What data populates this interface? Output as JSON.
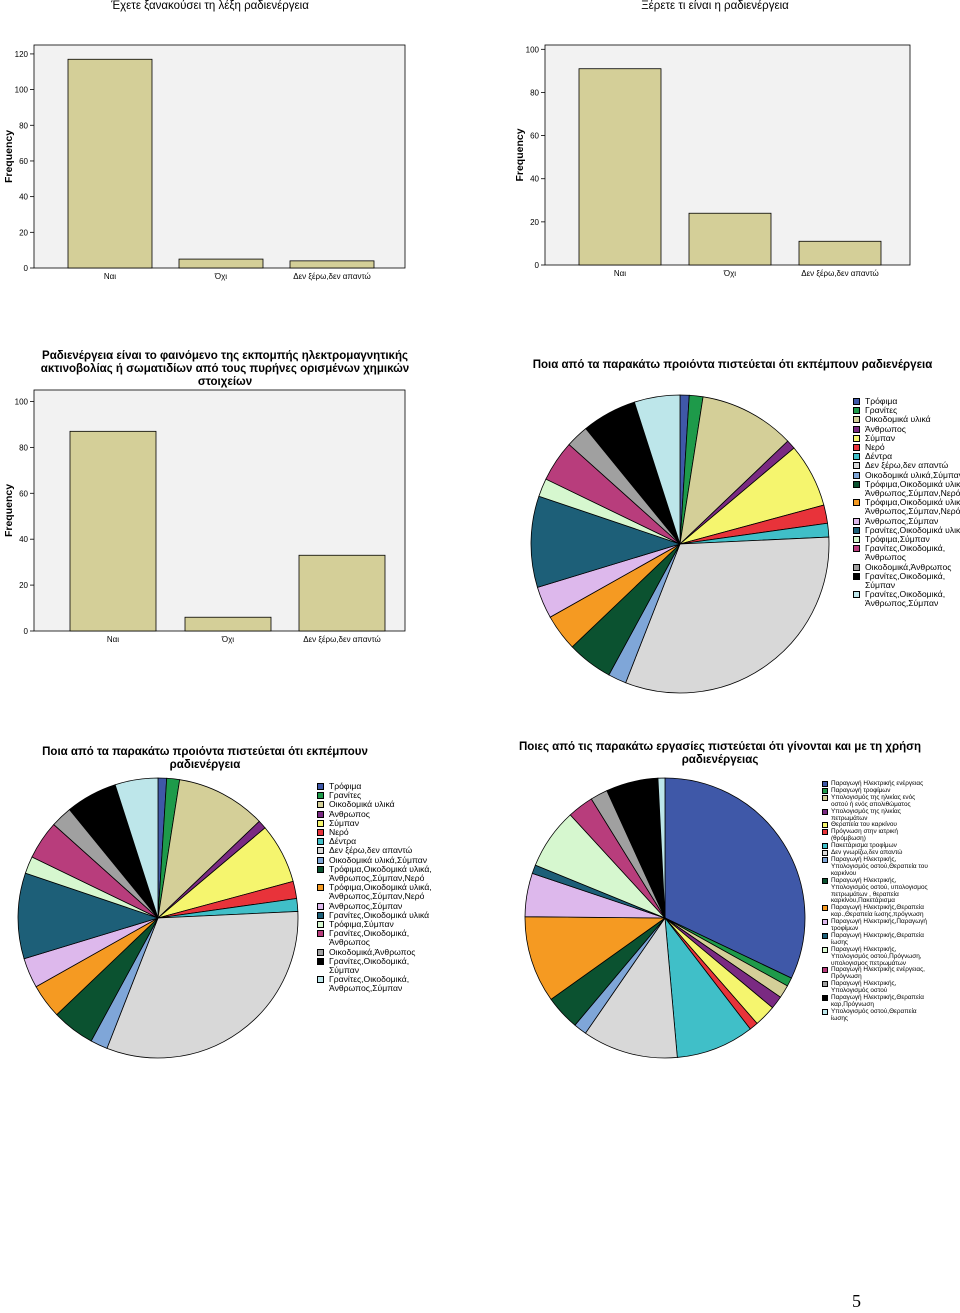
{
  "page_number": "5",
  "chart_data": [
    {
      "id": "bar1",
      "type": "bar",
      "title": "Έχετε ξανακούσει τη λέξη ραδιενέργεια",
      "ylabel": "Frequency",
      "xlabel": "",
      "categories": [
        "Ναι",
        "Όχι",
        "Δεν ξέρω,δεν απαντώ"
      ],
      "values": [
        117,
        5,
        4
      ],
      "ylim": [
        0,
        125
      ],
      "yticks": [
        0,
        20,
        40,
        60,
        80,
        100,
        120
      ],
      "bar_color": "#d4cf98",
      "grid": false
    },
    {
      "id": "bar2",
      "type": "bar",
      "title": "Ξέρετε τι είναι η ραδιενέργεια",
      "ylabel": "Frequency",
      "xlabel": "",
      "categories": [
        "Ναι",
        "Όχι",
        "Δεν ξέρω,δεν απαντώ"
      ],
      "values": [
        91,
        24,
        11
      ],
      "ylim": [
        0,
        102
      ],
      "yticks": [
        0,
        20,
        40,
        60,
        80,
        100
      ],
      "bar_color": "#d4cf98",
      "grid": false
    },
    {
      "id": "bar3",
      "type": "bar",
      "title": "Ραδιενέργεια είναι το φαινόμενο της εκπομπής ηλεκτρομαγνητικής ακτινοβολίας ή σωματιδίων από τους πυρήνες ορισμένων χημικών στοιχείων",
      "ylabel": "Frequency",
      "xlabel": "",
      "categories": [
        "Ναι",
        "Όχι",
        "Δεν ξέρω,δεν απαντώ"
      ],
      "values": [
        87,
        6,
        33
      ],
      "ylim": [
        0,
        105
      ],
      "yticks": [
        0,
        20,
        40,
        60,
        80,
        100
      ],
      "bar_color": "#d4cf98",
      "grid": false
    },
    {
      "id": "pie1",
      "type": "pie",
      "title": "Ποια από τα παρακάτω προιόντα πιστεύεται ότι εκπέμπουν ραδιενέργεια",
      "legend_position": "right",
      "slices": [
        {
          "label": "Τρόφιμα",
          "value": 1,
          "color": "#3f58a8"
        },
        {
          "label": "Γρανίτες",
          "value": 1.5,
          "color": "#1e9a4a"
        },
        {
          "label": "Οικοδομικά υλικά",
          "value": 10.5,
          "color": "#d4cf98"
        },
        {
          "label": "Άνθρωπος",
          "value": 1,
          "color": "#7a2a82"
        },
        {
          "label": "Σύμπαν",
          "value": 7,
          "color": "#f5f56e"
        },
        {
          "label": "Νερό",
          "value": 2,
          "color": "#e8333a"
        },
        {
          "label": "Δέντρα",
          "value": 1.5,
          "color": "#40bfc8"
        },
        {
          "label": "Δεν ξέρω,δεν απαντώ",
          "value": 32,
          "color": "#d8d8d8"
        },
        {
          "label": "Οικοδομικά υλικά,Σύμπαν",
          "value": 2,
          "color": "#7fa6d8"
        },
        {
          "label": "Τρόφιμα,Οικοδομικά υλικά, Άνθρωπος,Σύμπαν,Νερό",
          "value": 5,
          "color": "#0b5230"
        },
        {
          "label": "Τρόφιμα,Οικοδομικά υλικά, Άνθρωπος,Σύμπαν,Νερό",
          "value": 4,
          "color": "#f59a22"
        },
        {
          "label": "Άνθρωπος,Σύμπαν",
          "value": 3.5,
          "color": "#ddb8ec"
        },
        {
          "label": "Γρανίτες,Οικοδομικά υλικά",
          "value": 10,
          "color": "#1d5f78"
        },
        {
          "label": "Τρόφιμα,Σύμπαν",
          "value": 2,
          "color": "#d6f7cf"
        },
        {
          "label": "Γρανίτες,Οικοδομικά, Άνθρωπος",
          "value": 4.5,
          "color": "#b83d7c"
        },
        {
          "label": "Οικοδομικά,Άνθρωπος",
          "value": 2.5,
          "color": "#a0a0a0"
        },
        {
          "label": "Γρανίτες,Οικοδομικά, Σύμπαν",
          "value": 6,
          "color": "#000000"
        },
        {
          "label": "Γρανίτες,Οικοδομικά, Άνθρωπος,Σύμπαν",
          "value": 5,
          "color": "#bde6ea"
        }
      ]
    },
    {
      "id": "pie2",
      "type": "pie",
      "title": "Ποια από τα παρακάτω προιόντα πιστεύεται ότι εκπέμπουν ραδιενέργεια",
      "legend_position": "right",
      "slices": [
        {
          "label": "Τρόφιμα",
          "value": 1,
          "color": "#3f58a8"
        },
        {
          "label": "Γρανίτες",
          "value": 1.5,
          "color": "#1e9a4a"
        },
        {
          "label": "Οικοδομικά υλικά",
          "value": 10.5,
          "color": "#d4cf98"
        },
        {
          "label": "Άνθρωπος",
          "value": 1,
          "color": "#7a2a82"
        },
        {
          "label": "Σύμπαν",
          "value": 7,
          "color": "#f5f56e"
        },
        {
          "label": "Νερό",
          "value": 2,
          "color": "#e8333a"
        },
        {
          "label": "Δέντρα",
          "value": 1.5,
          "color": "#40bfc8"
        },
        {
          "label": "Δεν ξέρω,δεν απαντώ",
          "value": 32,
          "color": "#d8d8d8"
        },
        {
          "label": "Οικοδομικά υλικά,Σύμπαν",
          "value": 2,
          "color": "#7fa6d8"
        },
        {
          "label": "Τρόφιμα,Οικοδομικά υλικά, Άνθρωπος,Σύμπαν,Νερό",
          "value": 5,
          "color": "#0b5230"
        },
        {
          "label": "Τρόφιμα,Οικοδομικά υλικά, Άνθρωπος,Σύμπαν,Νερό",
          "value": 4,
          "color": "#f59a22"
        },
        {
          "label": "Άνθρωπος,Σύμπαν",
          "value": 3.5,
          "color": "#ddb8ec"
        },
        {
          "label": "Γρανίτες,Οικοδομικά υλικά",
          "value": 10,
          "color": "#1d5f78"
        },
        {
          "label": "Τρόφιμα,Σύμπαν",
          "value": 2,
          "color": "#d6f7cf"
        },
        {
          "label": "Γρανίτες,Οικοδομικά, Άνθρωπος",
          "value": 4.5,
          "color": "#b83d7c"
        },
        {
          "label": "Οικοδομικά,Άνθρωπος",
          "value": 2.5,
          "color": "#a0a0a0"
        },
        {
          "label": "Γρανίτες,Οικοδομικά, Σύμπαν",
          "value": 6,
          "color": "#000000"
        },
        {
          "label": "Γρανίτες,Οικοδομικά, Άνθρωπος,Σύμπαν",
          "value": 5,
          "color": "#bde6ea"
        }
      ]
    },
    {
      "id": "pie3",
      "type": "pie",
      "title": "Ποιες από τις παρακάτω εργασίες πιστεύεται ότι γίνονται και με τη χρήση ραδιενέργειας",
      "legend_position": "right",
      "slices": [
        {
          "label": "Παραγωγή Ηλεκτρικής ενέργειας",
          "value": 32,
          "color": "#3f58a8"
        },
        {
          "label": "Παραγωγή τροφίμων",
          "value": 1,
          "color": "#1e9a4a"
        },
        {
          "label": "Υπολογισμός της ηλικίας ενός οστού ή ενός απολιθώματος",
          "value": 1.5,
          "color": "#d4cf98"
        },
        {
          "label": "Υπολογισμός της ηλικίας πετρωμάτων",
          "value": 1.5,
          "color": "#7a2a82"
        },
        {
          "label": "Θεραπεία του καρκίνου",
          "value": 2.5,
          "color": "#f5f56e"
        },
        {
          "label": "Πρόγνωση στην ιατρική (θρόμβωση)",
          "value": 1,
          "color": "#e8333a"
        },
        {
          "label": "Πακετάρισμα τροφίμων",
          "value": 9,
          "color": "#40bfc8"
        },
        {
          "label": "Δεν γνωρίζω,δεν απαντώ",
          "value": 11,
          "color": "#d8d8d8"
        },
        {
          "label": "Παραγωγή Ηλεκτρικής, Υπολογισμός οστού,Θεραπεία του καρκίνου",
          "value": 1.5,
          "color": "#7fa6d8"
        },
        {
          "label": "Παραγωγή Ηλεκτρικής, Υπολογισμός οστού, υπολογισμος πετρωμάτων , θεραπεία καρκίνου,Πακετάρισμα",
          "value": 4,
          "color": "#0b5230"
        },
        {
          "label": "Παραγωγή Ηλεκτρικής,Θεραπεία καρ.,Θεραπεία ίωσης,πρόγνωση",
          "value": 10,
          "color": "#f59a22"
        },
        {
          "label": "Παραγωγή Ηλεκτρικής,Παραγωγή τροφίμων",
          "value": 5,
          "color": "#ddb8ec"
        },
        {
          "label": "Παραγωγή Ηλεκτρικής,Θεραπεία ίωσης",
          "value": 1,
          "color": "#1d5f78"
        },
        {
          "label": "Παραγωγή Ηλεκτρικής, Υπολογισμός οστού,Πρόγνωση, υπολογισμος πετρωμάτων",
          "value": 7,
          "color": "#d6f7cf"
        },
        {
          "label": "Παραγωγή Ηλεκτρικής ενέργειας, Πρόγνωση",
          "value": 3,
          "color": "#b83d7c"
        },
        {
          "label": "Παραγωγή Ηλεκτρικής, Υπολογισμός οστού",
          "value": 2,
          "color": "#a0a0a0"
        },
        {
          "label": "Παραγωγή Ηλεκτρικής,Θεραπεία καρ,Πρόγνωση",
          "value": 6,
          "color": "#000000"
        },
        {
          "label": "Υπολογισμός οστού,Θεραπεία ίωσης",
          "value": 0.8,
          "color": "#bde6ea"
        }
      ]
    }
  ]
}
